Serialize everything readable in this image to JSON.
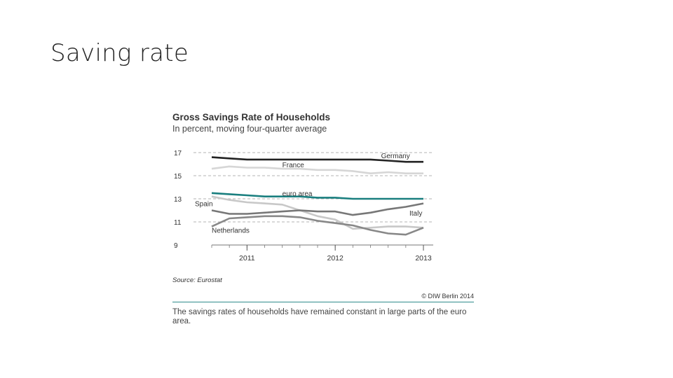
{
  "slide": {
    "title": "Saving rate"
  },
  "chart_data": {
    "type": "line",
    "title": "Gross Savings Rate of Households",
    "subtitle": "In percent, moving four-quarter average",
    "xlabel": "",
    "ylabel": "",
    "ylim": [
      9,
      17
    ],
    "xlim": [
      2010.0,
      2013.0
    ],
    "yticks": [
      9,
      11,
      13,
      15,
      17
    ],
    "xticks": [
      {
        "value": 2010.5,
        "label": "2011"
      },
      {
        "value": 2011.75,
        "label": "2012"
      },
      {
        "value": 2013.0,
        "label": "2013"
      }
    ],
    "grid": "dashed-horizontal",
    "series": [
      {
        "name": "Germany",
        "color": "#222222",
        "x": [
          2010.0,
          2010.25,
          2010.5,
          2010.75,
          2011.0,
          2011.25,
          2011.5,
          2011.75,
          2012.0,
          2012.25,
          2012.5,
          2012.75,
          2013.0
        ],
        "values": [
          16.6,
          16.5,
          16.4,
          16.4,
          16.4,
          16.4,
          16.4,
          16.4,
          16.4,
          16.4,
          16.3,
          16.2,
          16.2
        ]
      },
      {
        "name": "France",
        "color": "#d6d6d6",
        "x": [
          2010.0,
          2010.25,
          2010.5,
          2010.75,
          2011.0,
          2011.25,
          2011.5,
          2011.75,
          2012.0,
          2012.25,
          2012.5,
          2012.75,
          2013.0
        ],
        "values": [
          15.6,
          15.8,
          15.7,
          15.7,
          15.6,
          15.6,
          15.5,
          15.5,
          15.4,
          15.2,
          15.3,
          15.2,
          15.2
        ]
      },
      {
        "name": "euro area",
        "color": "#1a7f7f",
        "x": [
          2010.0,
          2010.25,
          2010.5,
          2010.75,
          2011.0,
          2011.25,
          2011.5,
          2011.75,
          2012.0,
          2012.25,
          2012.5,
          2012.75,
          2013.0
        ],
        "values": [
          13.5,
          13.4,
          13.3,
          13.2,
          13.2,
          13.2,
          13.1,
          13.1,
          13.0,
          13.0,
          13.0,
          13.0,
          13.0
        ]
      },
      {
        "name": "Spain",
        "color": "#c8c8c8",
        "x": [
          2010.0,
          2010.25,
          2010.5,
          2010.75,
          2011.0,
          2011.25,
          2011.5,
          2011.75,
          2012.0,
          2012.25,
          2012.5,
          2012.75,
          2013.0
        ],
        "values": [
          13.2,
          12.9,
          12.7,
          12.6,
          12.5,
          12.0,
          11.5,
          11.2,
          10.4,
          10.5,
          10.6,
          10.6,
          10.5
        ]
      },
      {
        "name": "Italy",
        "color": "#777777",
        "x": [
          2010.0,
          2010.25,
          2010.5,
          2010.75,
          2011.0,
          2011.25,
          2011.5,
          2011.75,
          2012.0,
          2012.25,
          2012.5,
          2012.75,
          2013.0
        ],
        "values": [
          12.0,
          11.7,
          11.7,
          11.8,
          11.9,
          12.0,
          11.9,
          11.9,
          11.6,
          11.8,
          12.1,
          12.3,
          12.6
        ]
      },
      {
        "name": "Netherlands",
        "color": "#888888",
        "x": [
          2010.0,
          2010.25,
          2010.5,
          2010.75,
          2011.0,
          2011.25,
          2011.5,
          2011.75,
          2012.0,
          2012.25,
          2012.5,
          2012.75,
          2013.0
        ],
        "values": [
          10.6,
          11.3,
          11.4,
          11.5,
          11.5,
          11.4,
          11.1,
          10.9,
          10.7,
          10.3,
          10.0,
          9.9,
          10.5
        ]
      }
    ],
    "source": "Source: Eurostat",
    "copyright": "© DIW Berlin 2014",
    "caption": "The savings rates of households have remained constant in large parts of the euro area."
  }
}
